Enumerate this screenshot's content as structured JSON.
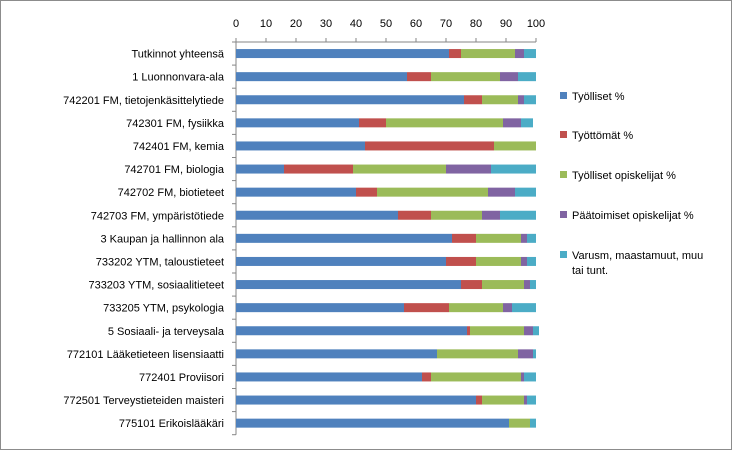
{
  "chart_data": {
    "type": "bar",
    "orientation": "horizontal",
    "stacked": true,
    "title": "",
    "xlabel": "",
    "ylabel": "",
    "xlim": [
      0,
      100
    ],
    "x_ticks": [
      "0",
      "10",
      "20",
      "30",
      "40",
      "50",
      "60",
      "70",
      "80",
      "90",
      "100"
    ],
    "x_axis_position": "top",
    "grid": false,
    "legend_position": "right",
    "categories": [
      "Tutkinnot yhteensä",
      "1 Luonnonvara-ala",
      "742201 FM, tietojenkäsittelytiede",
      "742301 FM, fysiikka",
      "742401 FM, kemia",
      "742701 FM, biologia",
      "742702 FM, biotieteet",
      "742703 FM, ympäristötiede",
      "3 Kaupan ja hallinnon ala",
      "733202 YTM, taloustieteet",
      "733203 YTM, sosiaalitieteet",
      "733205 YTM, psykologia",
      "5 Sosiaali- ja terveysala",
      "772101 Lääketieteen lisensiaatti",
      "772401 Proviisori",
      "772501 Terveystieteiden maisteri",
      "775101 Erikoislääkäri"
    ],
    "series": [
      {
        "name": "Työlliset %",
        "color": "#4f81bd",
        "values": [
          71,
          57,
          76,
          41,
          43,
          16,
          40,
          54,
          72,
          70,
          75,
          56,
          77,
          67,
          62,
          80,
          91
        ]
      },
      {
        "name": "Työttömät  %",
        "color": "#c0504d",
        "values": [
          4,
          8,
          6,
          9,
          43,
          23,
          7,
          11,
          8,
          10,
          7,
          15,
          1,
          0,
          3,
          2,
          0
        ]
      },
      {
        "name": "Työlliset opiskelijat %",
        "color": "#9bbb59",
        "values": [
          18,
          23,
          12,
          39,
          14,
          31,
          37,
          17,
          15,
          15,
          14,
          18,
          18,
          27,
          30,
          14,
          7
        ]
      },
      {
        "name": "Päätoimiset opiskelijat %",
        "color": "#8064a2",
        "values": [
          3,
          6,
          2,
          6,
          0,
          15,
          9,
          6,
          2,
          2,
          2,
          3,
          3,
          5,
          1,
          1,
          0
        ]
      },
      {
        "name": "Varusm, maastamuut,  muu tai tunt.",
        "color": "#4bacc6",
        "values": [
          4,
          6,
          4,
          4,
          0,
          15,
          7,
          12,
          3,
          3,
          2,
          8,
          2,
          1,
          4,
          3,
          2
        ]
      }
    ]
  }
}
